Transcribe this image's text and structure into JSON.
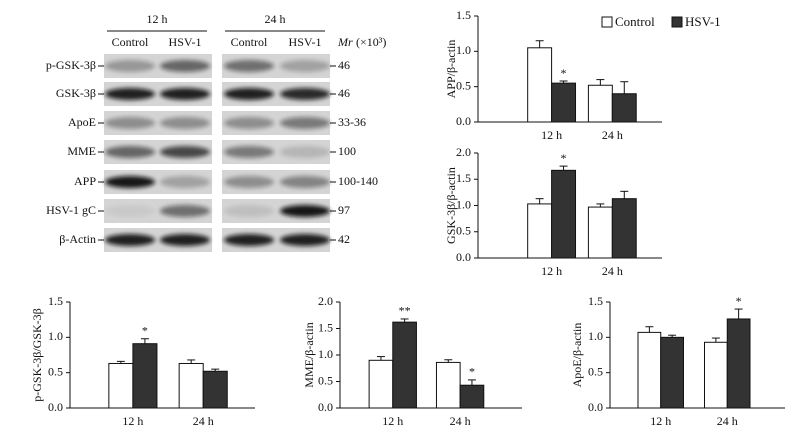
{
  "blot": {
    "time_labels": [
      "12 h",
      "24 h"
    ],
    "lane_labels": [
      "Control",
      "HSV-1",
      "Control",
      "HSV-1"
    ],
    "mr_symbol": "Mr",
    "mr_unit": "(×10³)",
    "rows": [
      {
        "label": "p-GSK-3β",
        "mr": "46"
      },
      {
        "label": "GSK-3β",
        "mr": "46"
      },
      {
        "label": "ApoE",
        "mr": "33-36"
      },
      {
        "label": "MME",
        "mr": "100"
      },
      {
        "label": "APP",
        "mr": "100-140"
      },
      {
        "label": "HSV-1 gC",
        "mr": "97"
      },
      {
        "label": "β-Actin",
        "mr": "42"
      }
    ]
  },
  "chart_data": [
    {
      "type": "bar",
      "y_label": "APP/β-actin",
      "categories": [
        "12 h",
        "24 h"
      ],
      "legend": "upper right",
      "series": [
        {
          "name": "Control",
          "color": "#ffffff",
          "values": [
            1.05,
            0.52
          ],
          "errors": [
            0.1,
            0.08
          ],
          "significance": [
            null,
            null
          ]
        },
        {
          "name": "HSV-1",
          "color": "#333333",
          "values": [
            0.55,
            0.4
          ],
          "errors": [
            0.03,
            0.17
          ],
          "significance": [
            "*",
            null
          ]
        }
      ],
      "ylim": [
        0,
        1.5
      ],
      "yticks": [
        {
          "value": 0,
          "label": "0.0"
        },
        0.5,
        {
          "value": 1,
          "label": "1.0"
        },
        1.5
      ]
    },
    {
      "type": "bar",
      "y_label": "GSK-3β/β-actin",
      "categories": [
        "12 h",
        "24 h"
      ],
      "series": [
        {
          "color": "#ffffff",
          "values": [
            1.03,
            0.97
          ],
          "errors": [
            0.1,
            0.06
          ],
          "significance": [
            null,
            null
          ]
        },
        {
          "color": "#333333",
          "values": [
            1.67,
            1.13
          ],
          "errors": [
            0.08,
            0.14
          ],
          "significance": [
            "*",
            null
          ]
        }
      ],
      "ylim": [
        0,
        2
      ],
      "yticks": [
        {
          "value": 0,
          "label": "0.0"
        },
        0.5,
        {
          "value": 1,
          "label": "1.0"
        },
        1.5,
        {
          "value": 2,
          "label": "2.0"
        }
      ]
    },
    {
      "type": "bar",
      "y_label": "p-GSK-3β/GSK-3β",
      "categories": [
        "12 h",
        "24 h"
      ],
      "series": [
        {
          "color": "#ffffff",
          "values": [
            0.63,
            0.63
          ],
          "errors": [
            0.03,
            0.05
          ],
          "significance": [
            null,
            null
          ]
        },
        {
          "color": "#333333",
          "values": [
            0.91,
            0.52
          ],
          "errors": [
            0.07,
            0.03
          ],
          "significance": [
            "*",
            null
          ]
        }
      ],
      "ylim": [
        0,
        1.5
      ],
      "yticks": [
        {
          "value": 0,
          "label": "0.0"
        },
        0.5,
        {
          "value": 1,
          "label": "1.0"
        },
        1.5
      ]
    },
    {
      "type": "bar",
      "y_label": "MME/β-actin",
      "categories": [
        "12 h",
        "24 h"
      ],
      "series": [
        {
          "color": "#ffffff",
          "values": [
            0.9,
            0.86
          ],
          "errors": [
            0.07,
            0.05
          ],
          "significance": [
            null,
            null
          ]
        },
        {
          "color": "#333333",
          "values": [
            1.62,
            0.43
          ],
          "errors": [
            0.06,
            0.1
          ],
          "significance": [
            "**",
            "*"
          ]
        }
      ],
      "ylim": [
        0,
        2
      ],
      "yticks": [
        {
          "value": 0,
          "label": "0.0"
        },
        0.5,
        {
          "value": 1,
          "label": "1.0"
        },
        1.5,
        {
          "value": 2,
          "label": "2.0"
        }
      ]
    },
    {
      "type": "bar",
      "y_label": "ApoE/β-actin",
      "categories": [
        "12 h",
        "24 h"
      ],
      "series": [
        {
          "color": "#ffffff",
          "values": [
            1.07,
            0.93
          ],
          "errors": [
            0.08,
            0.06
          ],
          "significance": [
            null,
            null
          ]
        },
        {
          "color": "#333333",
          "values": [
            1.0,
            1.26
          ],
          "errors": [
            0.03,
            0.14
          ],
          "significance": [
            null,
            "*"
          ]
        }
      ],
      "ylim": [
        0,
        1.5
      ],
      "yticks": [
        {
          "value": 0,
          "label": "0.0"
        },
        0.5,
        {
          "value": 1,
          "label": "1.0"
        },
        1.5
      ]
    }
  ]
}
